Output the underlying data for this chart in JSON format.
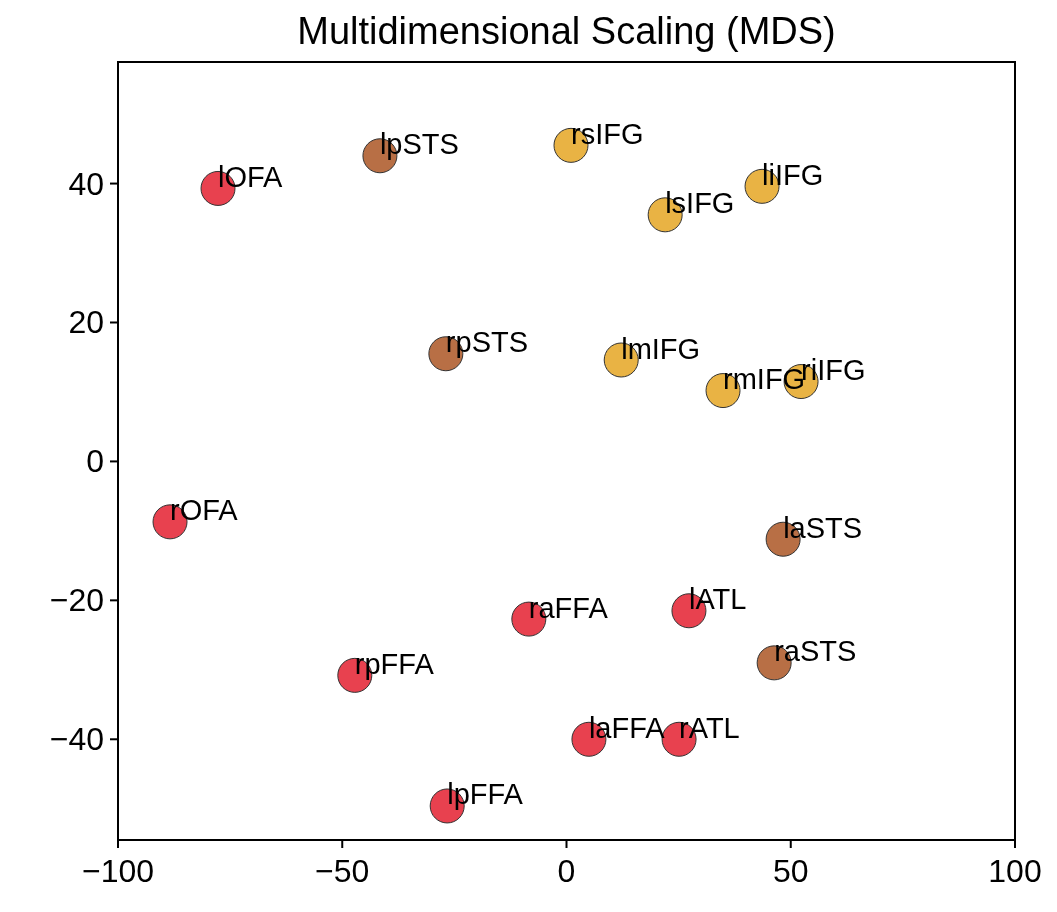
{
  "chart_data": {
    "type": "scatter",
    "title": "Multidimensional Scaling (MDS)",
    "xlim": [
      -100,
      100
    ],
    "ylim": [
      -54.5,
      57.5
    ],
    "xticks": [
      -100,
      -50,
      0,
      50,
      100
    ],
    "yticks": [
      -40,
      -20,
      0,
      20,
      40
    ],
    "grid": false,
    "marker": "circle",
    "series": [
      {
        "x": [
          -77.7,
          -41.6,
          1.0,
          22.0,
          43.6,
          -26.9,
          12.2,
          34.9,
          52.3,
          -88.4,
          48.3,
          -8.4,
          27.3,
          -47.2,
          46.3,
          5.0,
          25.1,
          -26.6
        ],
        "values": [
          39.3,
          44.0,
          45.5,
          35.5,
          39.6,
          15.5,
          14.6,
          10.2,
          11.5,
          -8.7,
          -11.2,
          -22.7,
          -21.5,
          -30.8,
          -29.0,
          -40.0,
          -40.0,
          -49.6
        ],
        "colors": [
          "#e8414f",
          "#b86f45",
          "#e9b344",
          "#e9b344",
          "#e9b344",
          "#b86f45",
          "#e9b344",
          "#e9b344",
          "#e9b344",
          "#e8414f",
          "#b86f45",
          "#e8414f",
          "#e8414f",
          "#e8414f",
          "#b86f45",
          "#e8414f",
          "#e8414f",
          "#e8414f"
        ]
      }
    ],
    "annotations": [
      {
        "text": "lOFA",
        "x": -77.7,
        "y": 39.3
      },
      {
        "text": "lpSTS",
        "x": -41.6,
        "y": 44.0
      },
      {
        "text": "rsIFG",
        "x": 1.0,
        "y": 45.5
      },
      {
        "text": "lsIFG",
        "x": 22.0,
        "y": 35.5
      },
      {
        "text": "liIFG",
        "x": 43.6,
        "y": 39.6
      },
      {
        "text": "rpSTS",
        "x": -26.9,
        "y": 15.5
      },
      {
        "text": "lmIFG",
        "x": 12.2,
        "y": 14.6
      },
      {
        "text": "rmIFG",
        "x": 34.9,
        "y": 10.2
      },
      {
        "text": "riIFG",
        "x": 52.3,
        "y": 11.5
      },
      {
        "text": "rOFA",
        "x": -88.4,
        "y": -8.7
      },
      {
        "text": "laSTS",
        "x": 48.3,
        "y": -11.2
      },
      {
        "text": "raFFA",
        "x": -8.4,
        "y": -22.7
      },
      {
        "text": "lATL",
        "x": 27.3,
        "y": -21.5
      },
      {
        "text": "rpFFA",
        "x": -47.2,
        "y": -30.8
      },
      {
        "text": "raSTS",
        "x": 46.3,
        "y": -29.0
      },
      {
        "text": "laFFA",
        "x": 5.0,
        "y": -40.0
      },
      {
        "text": "rATL",
        "x": 25.1,
        "y": -40.0
      },
      {
        "text": "lpFFA",
        "x": -26.6,
        "y": -49.6
      }
    ]
  }
}
